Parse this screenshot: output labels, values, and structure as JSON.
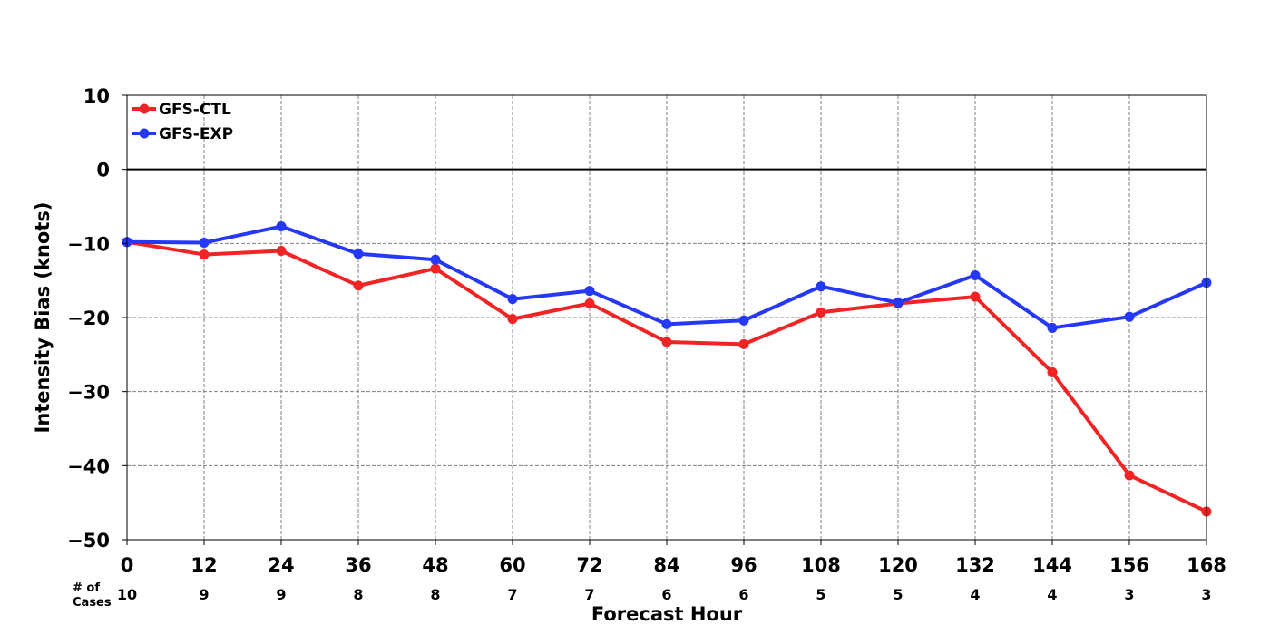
{
  "chart_data": {
    "type": "line",
    "xlabel": "Forecast Hour",
    "ylabel": "Intensity Bias (knots)",
    "x": [
      0,
      12,
      24,
      36,
      48,
      60,
      72,
      84,
      96,
      108,
      120,
      132,
      144,
      156,
      168
    ],
    "xlim": [
      0,
      168
    ],
    "ylim": [
      -50,
      10
    ],
    "yticks": [
      10,
      0,
      -10,
      -20,
      -30,
      -40,
      -50
    ],
    "ytick_labels": [
      "10",
      "0",
      "−10",
      "−20",
      "−30",
      "−40",
      "−50"
    ],
    "grid": true,
    "legend_position": "top-left",
    "cases_label_line1": "# of",
    "cases_label_line2": "Cases",
    "cases": [
      10,
      9,
      9,
      8,
      8,
      7,
      7,
      6,
      6,
      5,
      5,
      4,
      4,
      3,
      3
    ],
    "series": [
      {
        "name": "GFS-CTL",
        "color": "#f02424",
        "values": [
          -9.8,
          -11.5,
          -11.0,
          -15.7,
          -13.4,
          -20.2,
          -18.1,
          -23.3,
          -23.6,
          -19.3,
          -18.1,
          -17.2,
          -27.4,
          -41.3,
          -46.2
        ]
      },
      {
        "name": "GFS-EXP",
        "color": "#2438f5",
        "values": [
          -9.8,
          -9.9,
          -7.7,
          -11.4,
          -12.2,
          -17.5,
          -16.4,
          -20.9,
          -20.4,
          -15.8,
          -18.0,
          -14.3,
          -21.4,
          -19.9,
          -15.3
        ]
      }
    ]
  }
}
